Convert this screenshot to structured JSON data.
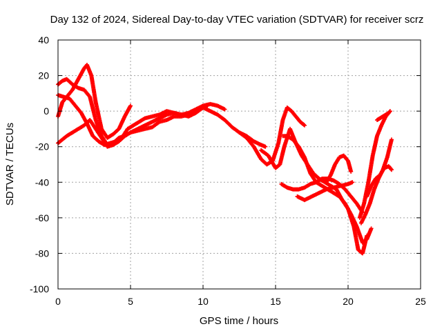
{
  "chart_data": {
    "type": "scatter",
    "title": "Day 132 of 2024, Sidereal Day-to-day VTEC variation (SDTVAR) for receiver scrz",
    "xlabel": "GPS time / hours",
    "ylabel": "SDTVAR / TECUs",
    "xlim": [
      0,
      25
    ],
    "ylim": [
      -100,
      40
    ],
    "xticks": [
      0,
      5,
      10,
      15,
      20,
      25
    ],
    "yticks": [
      -100,
      -80,
      -60,
      -40,
      -20,
      0,
      20,
      40
    ],
    "xtick_labels": [
      "0",
      "5",
      "10",
      "15",
      "20",
      "25"
    ],
    "ytick_labels": [
      "-100",
      "-80",
      "-60",
      "-40",
      "-20",
      "0",
      "20",
      "40"
    ],
    "grid": true,
    "marker": "plus",
    "color": "#ff0000",
    "series": [
      {
        "x": [
          0.0,
          0.3,
          0.6,
          1.0,
          1.4,
          1.8,
          2.2,
          2.6,
          3.0,
          3.4,
          3.8,
          4.2,
          4.6,
          5.0,
          5.5,
          6.0,
          6.5,
          7.0,
          7.5,
          8.0,
          8.5,
          9.0,
          9.5,
          10.0,
          10.5,
          11.0,
          11.5,
          12.0,
          12.5,
          13.0,
          13.5,
          14.0,
          14.3
        ],
        "y": [
          15,
          17,
          18,
          15,
          13,
          12,
          8,
          -5,
          -14,
          -19,
          -18,
          -15,
          -14,
          -12,
          -11,
          -10,
          -9,
          -6,
          -5,
          -3,
          -3,
          -2,
          0,
          2,
          0,
          -2,
          -5,
          -9,
          -12,
          -14,
          -17,
          -19,
          -20
        ]
      },
      {
        "x": [
          0.0,
          0.3,
          0.6,
          1.0,
          1.4,
          1.8,
          2.0,
          2.3,
          2.6,
          3.0,
          3.4,
          3.8,
          4.2,
          4.6,
          5.0
        ],
        "y": [
          -3,
          5,
          8,
          12,
          18,
          24,
          26,
          20,
          5,
          -10,
          -15,
          -13,
          -10,
          -3,
          3
        ]
      },
      {
        "x": [
          0.0,
          0.3,
          0.6,
          1.0,
          1.4,
          1.8,
          2.2,
          2.6,
          3.0,
          3.4,
          3.8,
          4.2,
          4.6,
          5.0,
          5.5,
          6.0,
          6.5,
          7.0,
          7.5,
          8.0,
          8.5,
          9.0,
          9.5,
          10.0,
          10.3
        ],
        "y": [
          -18,
          -16,
          -14,
          -12,
          -10,
          -8,
          -5,
          -10,
          -15,
          -20,
          -19,
          -17,
          -14,
          -12,
          -10,
          -8,
          -6,
          -4,
          -2,
          -1,
          -2,
          -3,
          -1,
          2,
          3
        ]
      },
      {
        "x": [
          0.0,
          0.4,
          0.8,
          1.2,
          1.6,
          2.0,
          2.4,
          2.8,
          3.2,
          3.6,
          4.0,
          4.4,
          4.8,
          5.2,
          5.6,
          6.0,
          6.5,
          7.0,
          7.5,
          8.0,
          8.5,
          9.0,
          9.5,
          10.0,
          10.5,
          11.0,
          11.5
        ],
        "y": [
          9,
          8,
          7,
          3,
          -1,
          -7,
          -14,
          -17,
          -19,
          -18,
          -17,
          -15,
          -10,
          -8,
          -6,
          -4,
          -3,
          -2,
          0,
          -1,
          -2,
          -1,
          1,
          3,
          4,
          3,
          1
        ]
      },
      {
        "x": [
          12.5,
          13.0,
          13.5,
          14.0,
          14.4,
          14.8,
          15.2,
          15.5,
          15.8,
          16.1,
          16.4,
          16.7,
          17.0
        ],
        "y": [
          -12,
          -15,
          -20,
          -27,
          -30,
          -28,
          -18,
          -5,
          2,
          0,
          -3,
          -6,
          -8
        ]
      },
      {
        "x": [
          14.0,
          14.5,
          15.0,
          15.3,
          15.6,
          16.0,
          16.4,
          16.8,
          17.2,
          17.6,
          18.0,
          18.4,
          18.8,
          19.2,
          19.6,
          20.0,
          20.4,
          20.7,
          21.0,
          21.3
        ],
        "y": [
          -22,
          -25,
          -32,
          -30,
          -20,
          -10,
          -18,
          -25,
          -30,
          -35,
          -38,
          -40,
          -42,
          -44,
          -50,
          -55,
          -65,
          -78,
          -80,
          -70
        ]
      },
      {
        "x": [
          15.5,
          15.8,
          16.2,
          16.6,
          17.0,
          17.4,
          17.8,
          18.2,
          18.6,
          19.0,
          19.4,
          19.8,
          20.2,
          20.6,
          21.0,
          21.3,
          21.6
        ],
        "y": [
          -14,
          -14,
          -16,
          -20,
          -26,
          -35,
          -40,
          -42,
          -44,
          -46,
          -48,
          -52,
          -58,
          -65,
          -74,
          -72,
          -66
        ]
      },
      {
        "x": [
          15.4,
          15.8,
          16.2,
          16.6,
          17.0,
          17.4,
          17.8,
          18.2,
          18.6,
          19.0,
          19.4,
          19.8,
          20.2,
          20.6,
          21.0
        ],
        "y": [
          -41,
          -43,
          -44,
          -44,
          -43,
          -41,
          -40,
          -38,
          -38,
          -39,
          -41,
          -44,
          -48,
          -52,
          -57
        ]
      },
      {
        "x": [
          16.5,
          17.0,
          17.5,
          18.0,
          18.5,
          19.0,
          19.5,
          20.0,
          20.3
        ],
        "y": [
          -48,
          -50,
          -48,
          -46,
          -44,
          -43,
          -42,
          -41,
          -40
        ]
      },
      {
        "x": [
          18.5,
          18.8,
          19.1,
          19.4,
          19.7,
          20.0,
          20.2
        ],
        "y": [
          -40,
          -36,
          -30,
          -26,
          -25,
          -28,
          -34
        ]
      },
      {
        "x": [
          20.8,
          21.1,
          21.4,
          21.7,
          22.0,
          22.3,
          22.6,
          22.9
        ],
        "y": [
          -60,
          -52,
          -40,
          -25,
          -14,
          -8,
          -3,
          0
        ]
      },
      {
        "x": [
          20.9,
          21.2,
          21.5,
          21.8,
          22.1,
          22.4,
          22.7,
          23.0
        ],
        "y": [
          -63,
          -58,
          -52,
          -44,
          -38,
          -33,
          -26,
          -16
        ]
      },
      {
        "x": [
          21.3,
          21.6,
          21.9,
          22.2,
          22.5,
          22.8,
          23.0
        ],
        "y": [
          -48,
          -42,
          -38,
          -36,
          -32,
          -31,
          -33
        ]
      },
      {
        "x": [
          22.0,
          22.2,
          22.4,
          22.6,
          22.8
        ],
        "y": [
          -5,
          -4,
          -3,
          -2,
          -1
        ]
      }
    ]
  }
}
